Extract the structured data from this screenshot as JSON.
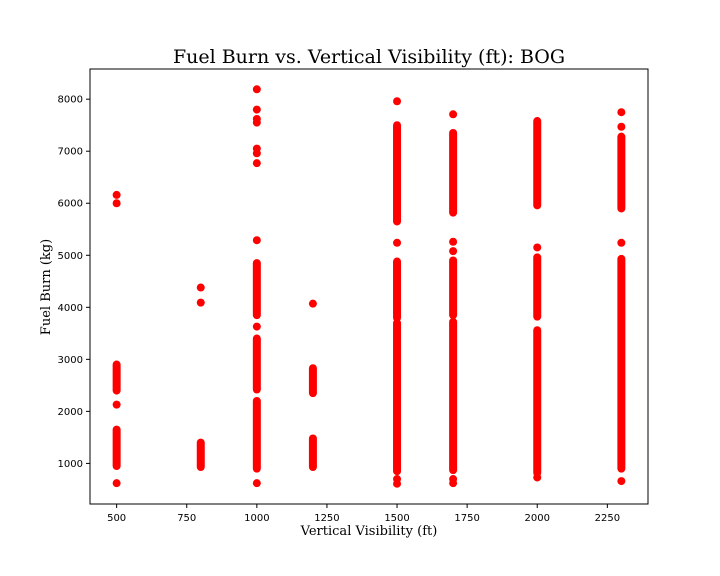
{
  "chart_data": {
    "type": "scatter",
    "title": "Fuel Burn vs. Vertical Visibility (ft): BOG",
    "xlabel": "Vertical Visibility (ft)",
    "ylabel": "Fuel Burn (kg)",
    "xlim": [
      405,
      2395
    ],
    "ylim": [
      220,
      8580
    ],
    "xticks": [
      500,
      750,
      1000,
      1250,
      1500,
      1750,
      2000,
      2250
    ],
    "yticks": [
      1000,
      2000,
      3000,
      4000,
      5000,
      6000,
      7000,
      8000
    ],
    "grid": false,
    "marker_color": "#ff0000",
    "series": [
      {
        "points": [
          {
            "x": 500,
            "ranges": [
              [
                950,
                1650
              ],
              [
                2400,
                2900
              ]
            ],
            "values": [
              620,
              2130,
              6000,
              6160
            ]
          },
          {
            "x": 800,
            "ranges": [
              [
                930,
                1400
              ]
            ],
            "values": [
              4090,
              4380
            ]
          },
          {
            "x": 1000,
            "ranges": [
              [
                900,
                2200
              ],
              [
                2420,
                3400
              ],
              [
                3850,
                4850
              ]
            ],
            "values": [
              620,
              3630,
              5290,
              6770,
              6960,
              7050,
              7550,
              7620,
              7800,
              8190
            ]
          },
          {
            "x": 1200,
            "ranges": [
              [
                930,
                1480
              ],
              [
                2350,
                2830
              ]
            ],
            "values": [
              4070
            ]
          },
          {
            "x": 1500,
            "ranges": [
              [
                850,
                3700
              ],
              [
                3800,
                4880
              ],
              [
                5650,
                7500
              ]
            ],
            "values": [
              610,
              700,
              5240,
              7960
            ]
          },
          {
            "x": 1700,
            "ranges": [
              [
                870,
                3720
              ],
              [
                3850,
                4900
              ],
              [
                5820,
                7350
              ]
            ],
            "values": [
              620,
              700,
              5080,
              5260,
              7710
            ]
          },
          {
            "x": 2000,
            "ranges": [
              [
                820,
                3560
              ],
              [
                3820,
                4960
              ],
              [
                5960,
                7580
              ]
            ],
            "values": [
              730,
              5150
            ]
          },
          {
            "x": 2300,
            "ranges": [
              [
                900,
                4930
              ],
              [
                5900,
                7280
              ]
            ],
            "values": [
              660,
              5240,
              7470,
              7750
            ]
          }
        ]
      }
    ]
  }
}
